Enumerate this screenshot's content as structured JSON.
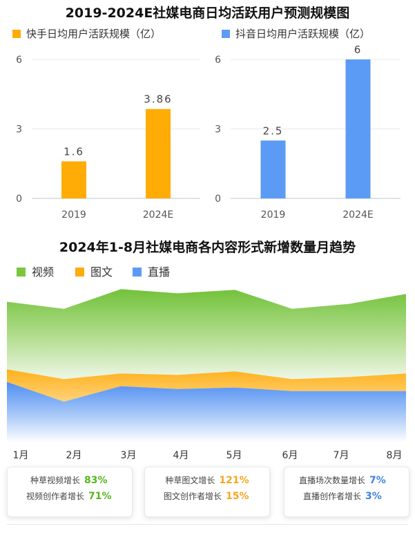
{
  "title_top": "2019-2024E社媒电商日均活跃用户预测规模图",
  "title_bottom": "2024年1-8月社媒电商各内容形式新增数量月趋势",
  "colors": {
    "orange": "#FFAC06",
    "blue": "#5B9BF5",
    "green": "#7CC63F",
    "green_text": "#58B520",
    "orange_text": "#F5A623",
    "blue_text": "#3F83E0"
  },
  "chart_data": [
    {
      "type": "bar",
      "title": "快手日均用户活跃规模（亿）",
      "legend": "快手日均用户活跃规模（亿）",
      "categories": [
        "2019",
        "2024E"
      ],
      "values": [
        1.6,
        3.86
      ],
      "value_labels": [
        "1.6",
        "3.86"
      ],
      "yticks": [
        "0",
        "3",
        "6"
      ],
      "ylim": [
        0,
        6
      ]
    },
    {
      "type": "bar",
      "title": "抖音日均用户活跃规模（亿）",
      "legend": "抖音日均用户活跃规模（亿）",
      "categories": [
        "2019",
        "2024E"
      ],
      "values": [
        2.5,
        6
      ],
      "value_labels": [
        "2.5",
        "6"
      ],
      "yticks": [
        "0",
        "3",
        "6"
      ],
      "ylim": [
        0,
        6
      ]
    },
    {
      "type": "area",
      "title": "2024年1-8月社媒电商各内容形式新增数量月趋势",
      "x": [
        "1月",
        "2月",
        "3月",
        "4月",
        "5月",
        "6月",
        "7月",
        "8月"
      ],
      "series": [
        {
          "name": "直播",
          "values": [
            86,
            58,
            80,
            76,
            78,
            73,
            73,
            73
          ]
        },
        {
          "name": "图文",
          "values": [
            18,
            32,
            18,
            20,
            23,
            17,
            20,
            25
          ]
        },
        {
          "name": "视频",
          "values": [
            96,
            100,
            120,
            116,
            116,
            100,
            104,
            113
          ]
        }
      ],
      "legend": [
        "视频",
        "图文",
        "直播"
      ],
      "ylim": [
        0,
        230
      ]
    }
  ],
  "stats": [
    {
      "rows": [
        {
          "label": "种草视频增长",
          "value": "83%"
        },
        {
          "label": "视频创作者增长",
          "value": "71%"
        }
      ]
    },
    {
      "rows": [
        {
          "label": "种草图文增长",
          "value": "121%"
        },
        {
          "label": "图文创作者增长",
          "value": "15%"
        }
      ]
    },
    {
      "rows": [
        {
          "label": "直播场次数量增长",
          "value": "7%"
        },
        {
          "label": "直播创作者增长",
          "value": "3%"
        }
      ]
    }
  ]
}
